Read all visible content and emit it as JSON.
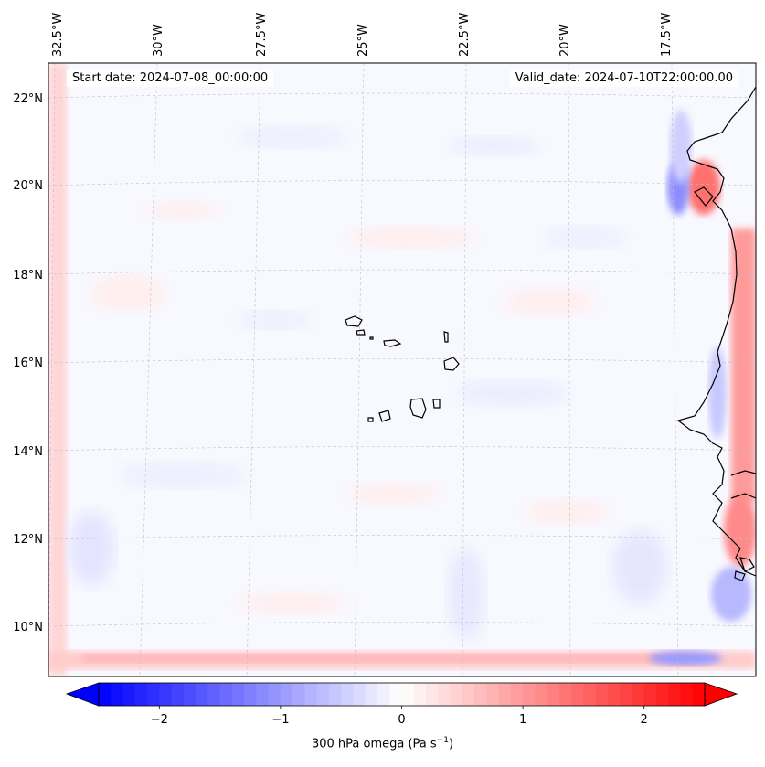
{
  "map": {
    "start_date": "Start date: 2024-07-08_00:00:00",
    "valid_date": "Valid_date: 2024-07-10T22:00:00.00",
    "lon_labels": [
      "32.5°W",
      "30°W",
      "27.5°W",
      "25°W",
      "22.5°W",
      "20°W",
      "17.5°W"
    ],
    "lat_labels": [
      "22°N",
      "20°N",
      "18°N",
      "16°N",
      "14°N",
      "12°N",
      "10°N"
    ],
    "gridlines": true
  },
  "colorbar": {
    "title_main": "300 hPa omega (Pa s",
    "title_exp": "−1",
    "title_end": ")",
    "tick_labels": [
      "−2",
      "−1",
      "0",
      "1",
      "2"
    ],
    "tick_values": [
      -2,
      -1,
      0,
      1,
      2
    ],
    "range": [
      -2.5,
      2.5
    ],
    "colormap": "bwr",
    "color_low": "#0000ff",
    "color_mid": "#ffffff",
    "color_high": "#ff0000"
  }
}
